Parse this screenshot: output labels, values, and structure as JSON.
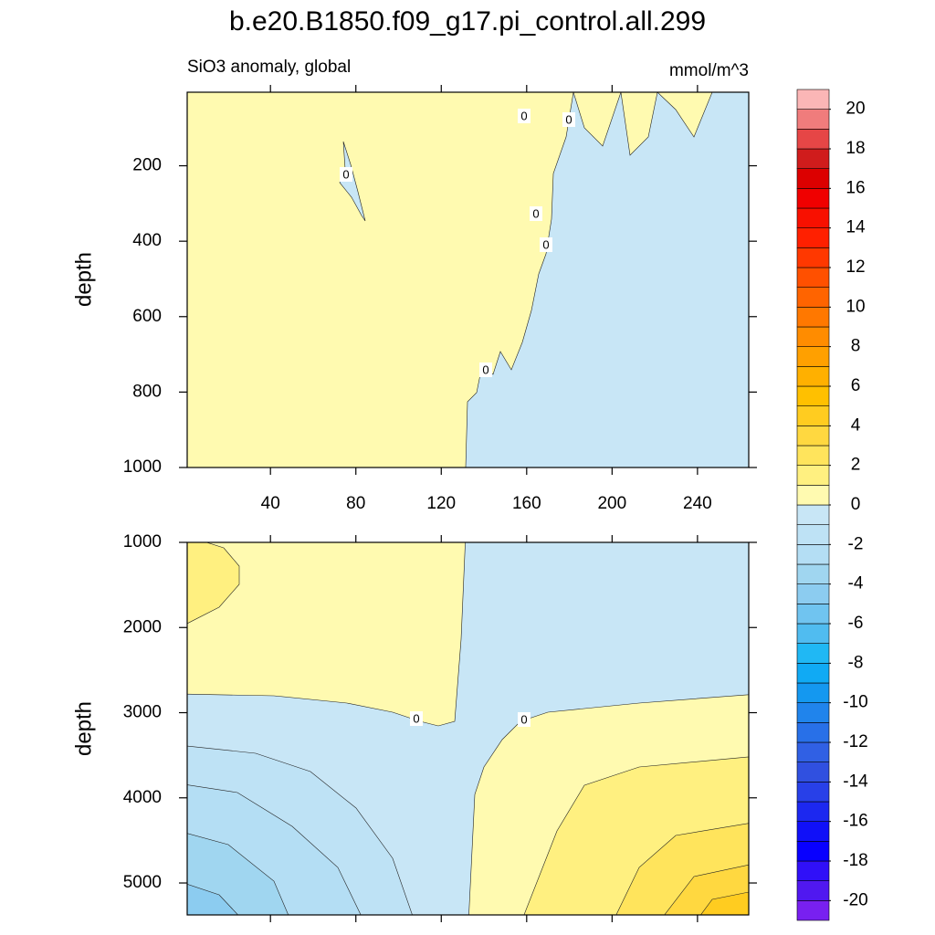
{
  "title": "b.e20.B1850.f09_g17.pi_control.all.299",
  "chart_data": [
    {
      "type": "contour",
      "subtitle_left": "SiO3 anomaly, global",
      "subtitle_right": "mmol/m^3",
      "ylabel": "depth",
      "xlim": [
        1,
        264
      ],
      "ylim": [
        5,
        1000
      ],
      "y_reversed": true,
      "xticks": [
        40,
        80,
        120,
        160,
        200,
        240
      ],
      "xtick_labels": true,
      "yticks": [
        200,
        400,
        600,
        800,
        1000
      ],
      "contour_labels": [
        0,
        0,
        0,
        0,
        0,
        0
      ]
    },
    {
      "type": "contour",
      "ylabel": "depth",
      "xlim": [
        1,
        264
      ],
      "ylim": [
        1000,
        5375
      ],
      "y_reversed": true,
      "xticks": [
        40,
        80,
        120,
        160,
        200,
        240
      ],
      "xtick_labels": false,
      "yticks": [
        1000,
        2000,
        3000,
        4000,
        5000
      ],
      "contour_labels": [
        0,
        0
      ]
    }
  ],
  "colorbar": {
    "levels": [
      -20,
      -19,
      -18,
      -17,
      -16,
      -15,
      -14,
      -13,
      -12,
      -11,
      -10,
      -9,
      -8,
      -7,
      -6,
      -5,
      -4,
      -3,
      -2,
      -1,
      0,
      1,
      2,
      3,
      4,
      5,
      6,
      7,
      8,
      9,
      10,
      11,
      12,
      13,
      14,
      15,
      16,
      17,
      18,
      19,
      20
    ],
    "ticks": [
      -20,
      -18,
      -16,
      -14,
      -12,
      -10,
      -8,
      -6,
      -4,
      -2,
      0,
      2,
      4,
      6,
      8,
      10,
      12,
      14,
      16,
      18,
      20
    ],
    "colors": [
      "#7820f0",
      "#5018f0",
      "#3010f8",
      "#0800ff",
      "#1010f8",
      "#1c28f0",
      "#2840e8",
      "#3050e0",
      "#3060e4",
      "#2870e8",
      "#2084ec",
      "#1498f0",
      "#10aaf4",
      "#20b8f4",
      "#50bcf0",
      "#70c4f0",
      "#8cccf0",
      "#a0d6f0",
      "#b4def4",
      "#bee2f5",
      "#c8e6f6",
      "#fffab0",
      "#fff080",
      "#ffe45c",
      "#ffd840",
      "#ffcc20",
      "#ffc000",
      "#ffb000",
      "#ffa000",
      "#ff8c00",
      "#ff7800",
      "#ff6400",
      "#ff5000",
      "#ff3800",
      "#ff2000",
      "#f81000",
      "#f00000",
      "#dc0000",
      "#d01c1c",
      "#e64646",
      "#f07c7c",
      "#fbb6b6"
    ]
  }
}
